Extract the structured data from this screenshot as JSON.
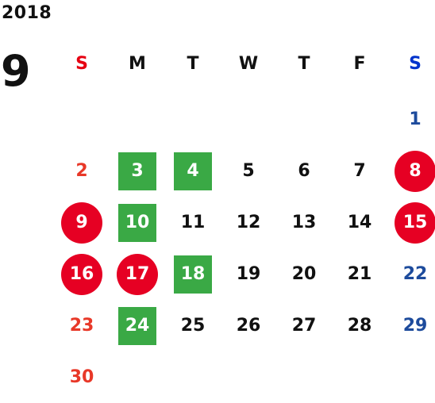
{
  "calendar": {
    "year": "2018",
    "month": "9",
    "colors": {
      "sunday_text": "#e83828",
      "saturday_text": "#1d4b9c",
      "holiday_circle": "#e60023",
      "event_square": "#3aa945"
    },
    "weekdays": [
      {
        "label": "S",
        "type": "sun"
      },
      {
        "label": "M",
        "type": "weekday"
      },
      {
        "label": "T",
        "type": "weekday"
      },
      {
        "label": "W",
        "type": "weekday"
      },
      {
        "label": "T",
        "type": "weekday"
      },
      {
        "label": "F",
        "type": "weekday"
      },
      {
        "label": "S",
        "type": "sat"
      }
    ],
    "weeks": [
      [
        null,
        null,
        null,
        null,
        null,
        null,
        {
          "day": "1",
          "type": "sat"
        }
      ],
      [
        {
          "day": "2",
          "type": "sun"
        },
        {
          "day": "3",
          "type": "weekday",
          "mark": "event"
        },
        {
          "day": "4",
          "type": "weekday",
          "mark": "event"
        },
        {
          "day": "5",
          "type": "weekday"
        },
        {
          "day": "6",
          "type": "weekday"
        },
        {
          "day": "7",
          "type": "weekday"
        },
        {
          "day": "8",
          "type": "sat",
          "mark": "holiday"
        }
      ],
      [
        {
          "day": "9",
          "type": "sun",
          "mark": "holiday"
        },
        {
          "day": "10",
          "type": "weekday",
          "mark": "event"
        },
        {
          "day": "11",
          "type": "weekday"
        },
        {
          "day": "12",
          "type": "weekday"
        },
        {
          "day": "13",
          "type": "weekday"
        },
        {
          "day": "14",
          "type": "weekday"
        },
        {
          "day": "15",
          "type": "sat",
          "mark": "holiday"
        }
      ],
      [
        {
          "day": "16",
          "type": "sun",
          "mark": "holiday"
        },
        {
          "day": "17",
          "type": "weekday",
          "mark": "holiday"
        },
        {
          "day": "18",
          "type": "weekday",
          "mark": "event"
        },
        {
          "day": "19",
          "type": "weekday"
        },
        {
          "day": "20",
          "type": "weekday"
        },
        {
          "day": "21",
          "type": "weekday"
        },
        {
          "day": "22",
          "type": "sat"
        }
      ],
      [
        {
          "day": "23",
          "type": "sun"
        },
        {
          "day": "24",
          "type": "weekday",
          "mark": "event"
        },
        {
          "day": "25",
          "type": "weekday"
        },
        {
          "day": "26",
          "type": "weekday"
        },
        {
          "day": "27",
          "type": "weekday"
        },
        {
          "day": "28",
          "type": "weekday"
        },
        {
          "day": "29",
          "type": "sat"
        }
      ],
      [
        {
          "day": "30",
          "type": "sun"
        },
        null,
        null,
        null,
        null,
        null,
        null
      ]
    ]
  }
}
